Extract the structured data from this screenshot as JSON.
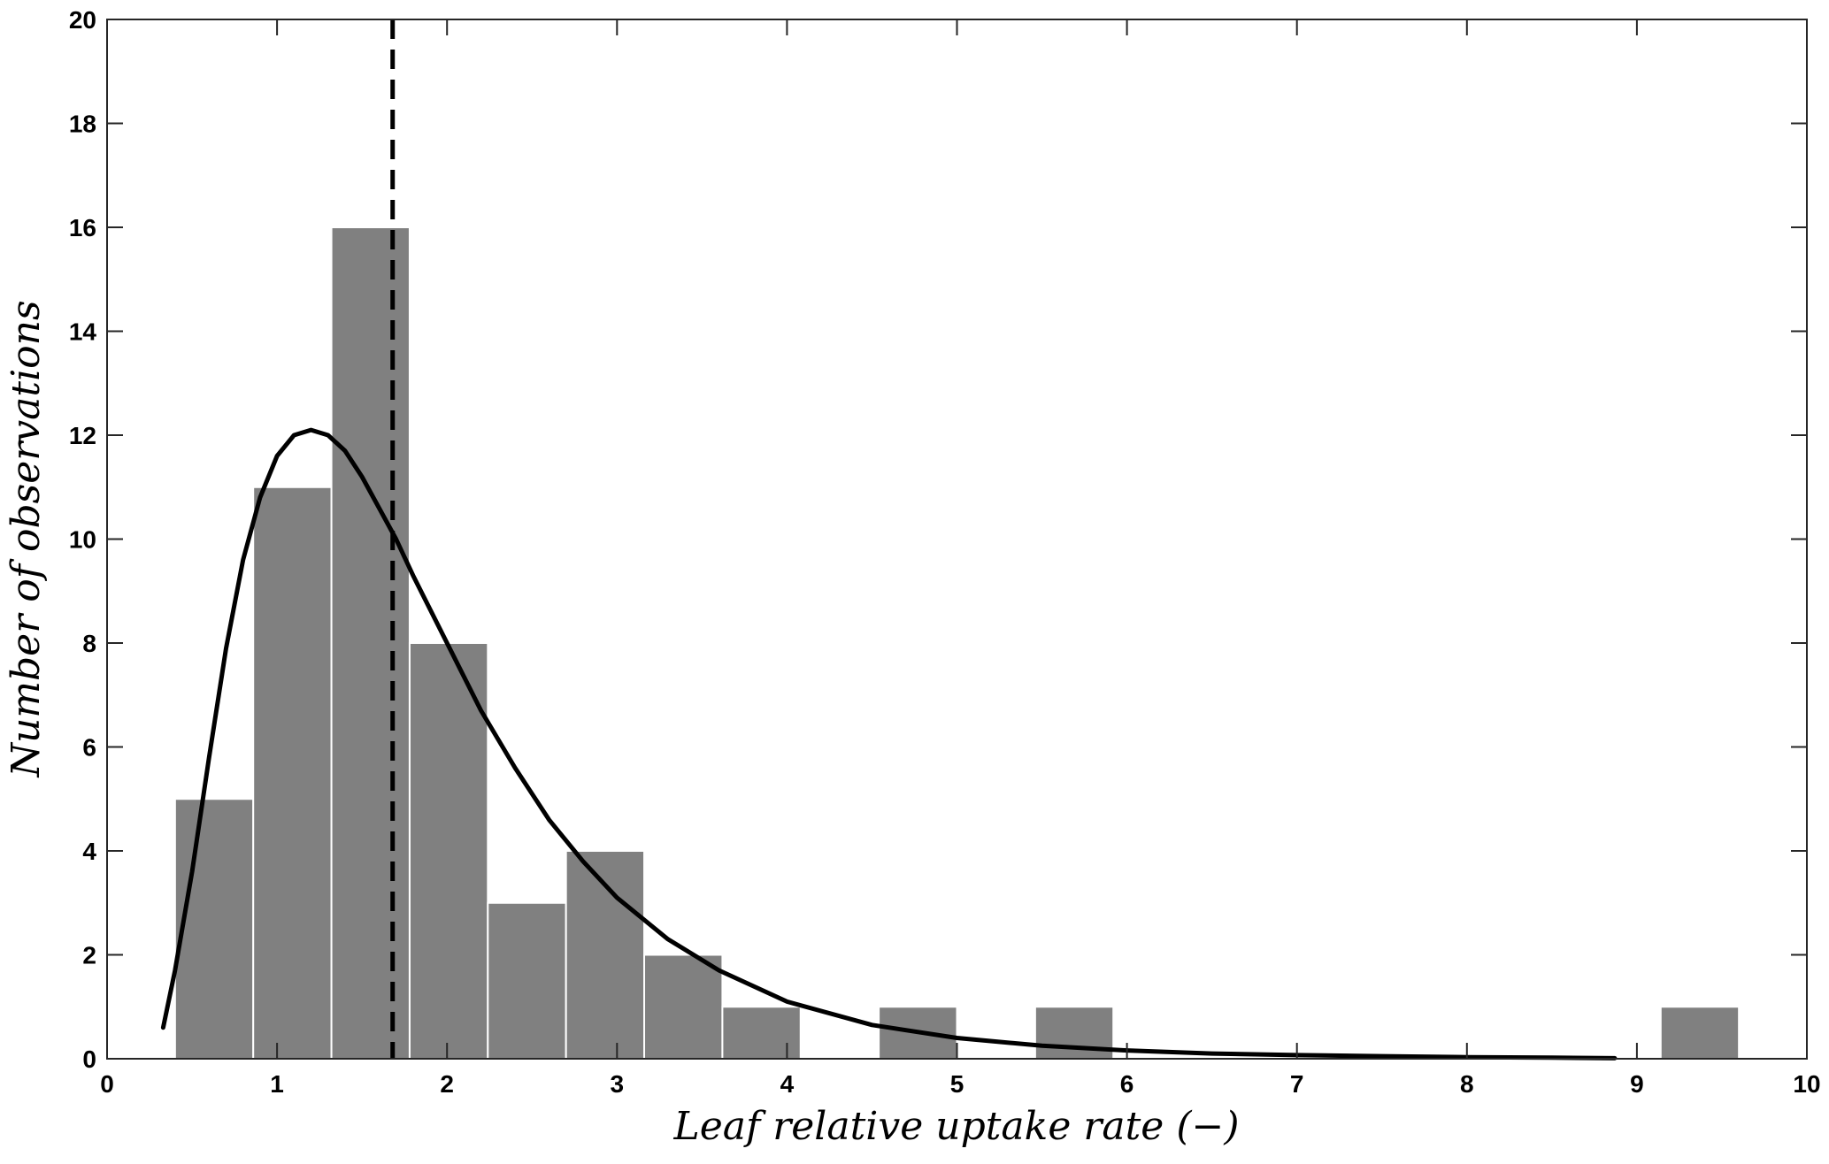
{
  "chart_data": {
    "type": "bar",
    "title": "",
    "xlabel": "Leaf relative uptake rate (−)",
    "ylabel": "Number of observations",
    "xlim": [
      0,
      10
    ],
    "ylim": [
      0,
      20
    ],
    "xticks": [
      0,
      1,
      2,
      3,
      4,
      5,
      6,
      7,
      8,
      9,
      10
    ],
    "yticks": [
      0,
      2,
      4,
      6,
      8,
      10,
      12,
      14,
      16,
      18,
      20
    ],
    "grid": false,
    "bar_color": "#808080",
    "bins": [
      {
        "x0": 0.4,
        "x1": 0.86,
        "count": 5
      },
      {
        "x0": 0.86,
        "x1": 1.32,
        "count": 11
      },
      {
        "x0": 1.32,
        "x1": 1.78,
        "count": 16
      },
      {
        "x0": 1.78,
        "x1": 2.24,
        "count": 8
      },
      {
        "x0": 2.24,
        "x1": 2.7,
        "count": 3
      },
      {
        "x0": 2.7,
        "x1": 3.16,
        "count": 4
      },
      {
        "x0": 3.16,
        "x1": 3.62,
        "count": 2
      },
      {
        "x0": 3.62,
        "x1": 4.08,
        "count": 1
      },
      {
        "x0": 4.54,
        "x1": 5.0,
        "count": 1
      },
      {
        "x0": 5.46,
        "x1": 5.92,
        "count": 1
      },
      {
        "x0": 9.14,
        "x1": 9.6,
        "count": 1
      }
    ],
    "fit_curve": {
      "type": "line",
      "color": "#000000",
      "x": [
        0.33,
        0.4,
        0.5,
        0.6,
        0.7,
        0.8,
        0.9,
        1.0,
        1.1,
        1.2,
        1.3,
        1.4,
        1.5,
        1.6,
        1.7,
        1.8,
        2.0,
        2.2,
        2.4,
        2.6,
        2.8,
        3.0,
        3.3,
        3.6,
        4.0,
        4.5,
        5.0,
        5.5,
        6.0,
        6.5,
        7.0,
        7.5,
        8.0,
        8.5,
        8.87
      ],
      "y": [
        0.6,
        1.7,
        3.6,
        5.8,
        7.9,
        9.6,
        10.8,
        11.6,
        12.0,
        12.1,
        12.0,
        11.7,
        11.2,
        10.6,
        10.0,
        9.3,
        8.0,
        6.7,
        5.6,
        4.6,
        3.8,
        3.1,
        2.3,
        1.7,
        1.1,
        0.65,
        0.4,
        0.25,
        0.16,
        0.1,
        0.07,
        0.05,
        0.03,
        0.02,
        0.01
      ]
    },
    "mean_line": {
      "x": 1.68,
      "style": "dashed",
      "color": "#000000"
    }
  }
}
